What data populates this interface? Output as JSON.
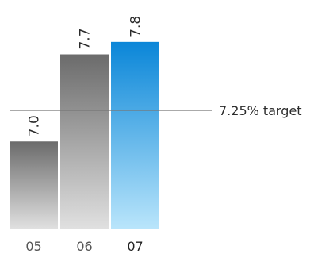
{
  "chart_data": {
    "type": "bar",
    "categories": [
      "05",
      "06",
      "07"
    ],
    "values": [
      7.0,
      7.7,
      7.8
    ],
    "value_labels": [
      "7.0",
      "7.7",
      "7.8"
    ],
    "ylim": [
      6.3,
      7.85
    ],
    "highlight_index": 2,
    "target": {
      "value": 7.25,
      "label": "7.25% target"
    },
    "grid": false,
    "legend": "none",
    "title": "",
    "xlabel": "",
    "ylabel": ""
  },
  "colors": {
    "gray_bar_top": "#6b6b6b",
    "gray_bar_bottom": "#e0e0e0",
    "blue_bar_top": "#0a86d8",
    "blue_bar_bottom": "#b9e5fb",
    "target_line": "#777777",
    "text": "#2b2b2b"
  }
}
